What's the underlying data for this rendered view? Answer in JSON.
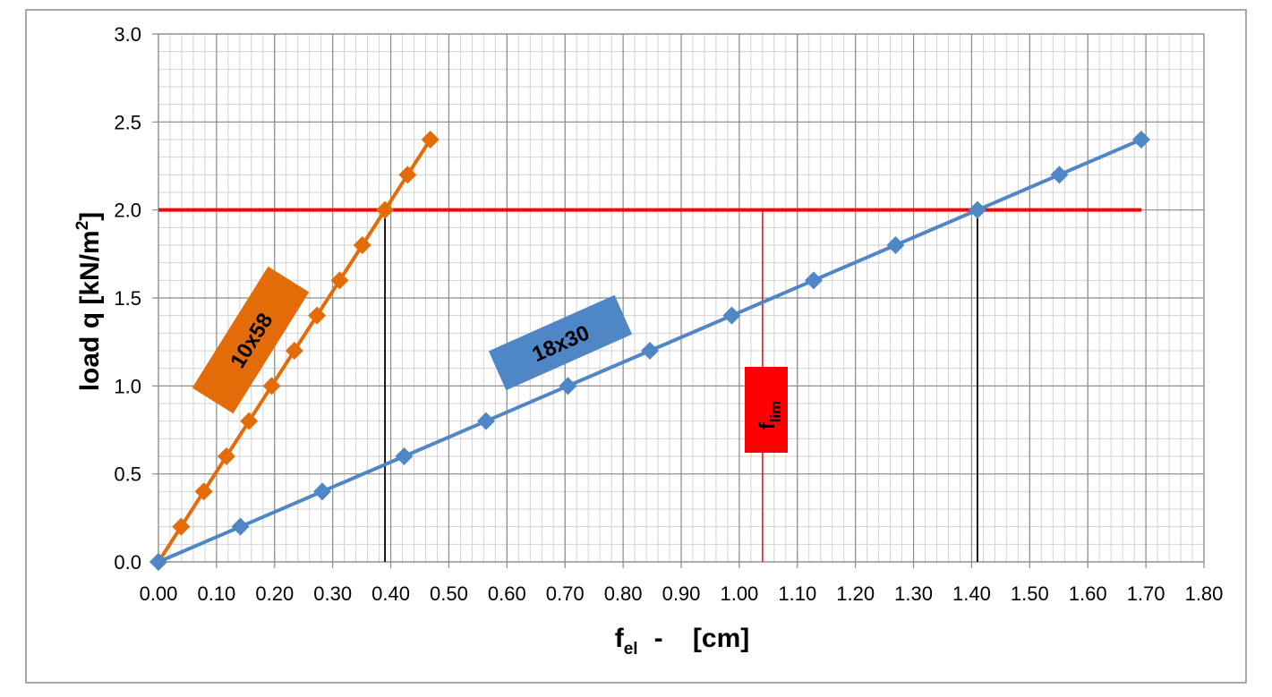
{
  "chart_data": {
    "type": "line",
    "title": "",
    "xlabel": {
      "main": "f",
      "sub": "el",
      "rest": "-    [cm]"
    },
    "ylabel": {
      "main": "load  q     [kN/m",
      "sup": "2",
      "end": "]"
    },
    "xlim": [
      0,
      1.8
    ],
    "ylim": [
      0,
      3.0
    ],
    "x_ticks": [
      "0.00",
      "0.10",
      "0.20",
      "0.30",
      "0.40",
      "0.50",
      "0.60",
      "0.70",
      "0.80",
      "0.90",
      "1.00",
      "1.10",
      "1.20",
      "1.30",
      "1.40",
      "1.50",
      "1.60",
      "1.70",
      "1.80"
    ],
    "y_ticks": [
      "0.0",
      "0.5",
      "1.0",
      "1.5",
      "2.0",
      "2.5",
      "3.0"
    ],
    "x_major": 0.1,
    "x_minor": 0.02,
    "y_major": 0.5,
    "y_minor": 0.1,
    "grid": true,
    "legend": "none",
    "series": [
      {
        "name": "10x58",
        "color": "#E36C09",
        "x": [
          0.0,
          0.039,
          0.078,
          0.117,
          0.156,
          0.195,
          0.234,
          0.273,
          0.312,
          0.351,
          0.39,
          0.429,
          0.468
        ],
        "y": [
          0.0,
          0.2,
          0.4,
          0.6,
          0.8,
          1.0,
          1.2,
          1.4,
          1.6,
          1.8,
          2.0,
          2.2,
          2.4
        ]
      },
      {
        "name": "18x30",
        "color": "#4F86C6",
        "x": [
          0.0,
          0.141,
          0.282,
          0.423,
          0.564,
          0.705,
          0.846,
          0.987,
          1.128,
          1.269,
          1.41,
          1.551,
          1.692
        ],
        "y": [
          0.0,
          0.2,
          0.4,
          0.6,
          0.8,
          1.0,
          1.2,
          1.4,
          1.6,
          1.8,
          2.0,
          2.2,
          2.4
        ]
      }
    ],
    "annotations": {
      "limit_load": {
        "y": 2.0,
        "color": "#FF0000"
      },
      "limit_deflection": {
        "x": 1.04,
        "label_main": "f",
        "label_sub": "lim",
        "color": "#FF0000"
      },
      "intersections": [
        {
          "series": "10x58",
          "x": 0.39,
          "y": 2.0,
          "color": "#000000"
        },
        {
          "series": "18x30",
          "x": 1.41,
          "y": 2.0,
          "color": "#000000"
        }
      ]
    }
  }
}
